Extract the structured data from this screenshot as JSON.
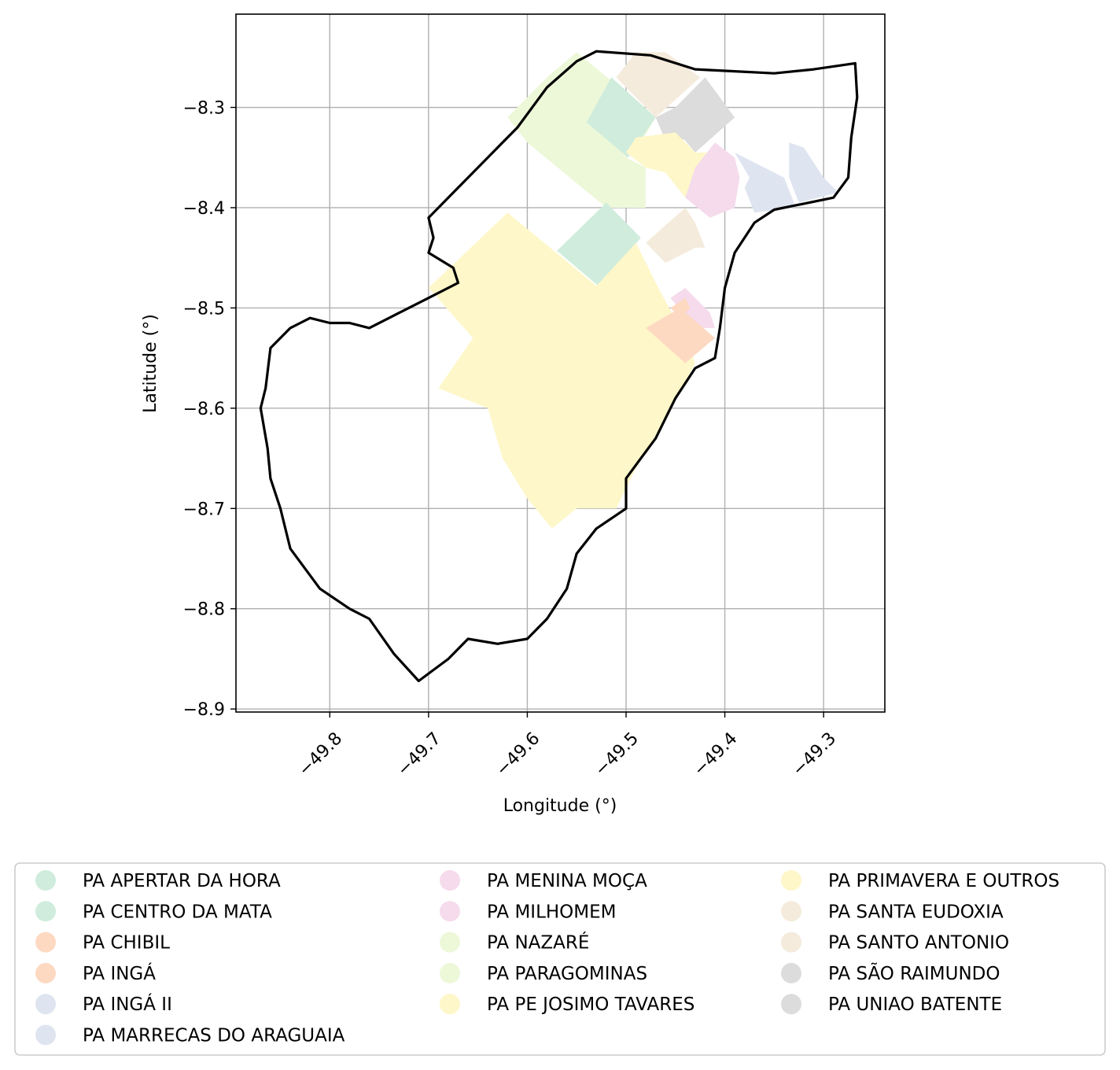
{
  "chart_data": {
    "type": "map",
    "xlabel": "Longitude (°)",
    "ylabel": "Latitude (°)",
    "xlim": [
      -49.895,
      -49.238
    ],
    "ylim": [
      -8.903,
      -8.207
    ],
    "grid": true,
    "legend_placement": "bottom",
    "x_ticks": [
      "−49.8",
      "−49.7",
      "−49.6",
      "−49.5",
      "−49.4",
      "−49.3"
    ],
    "x_tick_values": [
      -49.8,
      -49.7,
      -49.6,
      -49.5,
      -49.4,
      -49.3
    ],
    "y_ticks": [
      "−8.3",
      "−8.4",
      "−8.5",
      "−8.6",
      "−8.7",
      "−8.8",
      "−8.9"
    ],
    "y_tick_values": [
      -8.3,
      -8.4,
      -8.5,
      -8.6,
      -8.7,
      -8.8,
      -8.9
    ],
    "boundary": [
      [
        -49.53,
        -8.244
      ],
      [
        -49.475,
        -8.248
      ],
      [
        -49.43,
        -8.262
      ],
      [
        -49.39,
        -8.264
      ],
      [
        -49.35,
        -8.266
      ],
      [
        -49.31,
        -8.262
      ],
      [
        -49.268,
        -8.256
      ],
      [
        -49.266,
        -8.29
      ],
      [
        -49.272,
        -8.33
      ],
      [
        -49.275,
        -8.37
      ],
      [
        -49.29,
        -8.39
      ],
      [
        -49.32,
        -8.396
      ],
      [
        -49.35,
        -8.402
      ],
      [
        -49.37,
        -8.415
      ],
      [
        -49.39,
        -8.445
      ],
      [
        -49.4,
        -8.48
      ],
      [
        -49.405,
        -8.52
      ],
      [
        -49.41,
        -8.55
      ],
      [
        -49.43,
        -8.56
      ],
      [
        -49.45,
        -8.59
      ],
      [
        -49.46,
        -8.61
      ],
      [
        -49.47,
        -8.63
      ],
      [
        -49.485,
        -8.65
      ],
      [
        -49.5,
        -8.67
      ],
      [
        -49.5,
        -8.7
      ],
      [
        -49.53,
        -8.72
      ],
      [
        -49.55,
        -8.745
      ],
      [
        -49.56,
        -8.78
      ],
      [
        -49.58,
        -8.81
      ],
      [
        -49.6,
        -8.83
      ],
      [
        -49.63,
        -8.835
      ],
      [
        -49.66,
        -8.83
      ],
      [
        -49.68,
        -8.85
      ],
      [
        -49.71,
        -8.872
      ],
      [
        -49.735,
        -8.845
      ],
      [
        -49.76,
        -8.81
      ],
      [
        -49.78,
        -8.8
      ],
      [
        -49.81,
        -8.78
      ],
      [
        -49.84,
        -8.74
      ],
      [
        -49.85,
        -8.7
      ],
      [
        -49.86,
        -8.67
      ],
      [
        -49.863,
        -8.64
      ],
      [
        -49.87,
        -8.6
      ],
      [
        -49.865,
        -8.58
      ],
      [
        -49.86,
        -8.54
      ],
      [
        -49.84,
        -8.52
      ],
      [
        -49.82,
        -8.51
      ],
      [
        -49.8,
        -8.515
      ],
      [
        -49.78,
        -8.515
      ],
      [
        -49.76,
        -8.52
      ],
      [
        -49.74,
        -8.51
      ],
      [
        -49.72,
        -8.5
      ],
      [
        -49.7,
        -8.49
      ],
      [
        -49.67,
        -8.475
      ],
      [
        -49.675,
        -8.46
      ],
      [
        -49.7,
        -8.445
      ],
      [
        -49.695,
        -8.43
      ],
      [
        -49.7,
        -8.41
      ],
      [
        -49.67,
        -8.38
      ],
      [
        -49.64,
        -8.35
      ],
      [
        -49.61,
        -8.32
      ],
      [
        -49.58,
        -8.28
      ],
      [
        -49.55,
        -8.254
      ],
      [
        -49.53,
        -8.244
      ]
    ],
    "parcels": [
      {
        "name": "PA NAZARÉ",
        "color": "#edf8d9",
        "polygon": [
          [
            -49.55,
            -8.245
          ],
          [
            -49.47,
            -8.31
          ],
          [
            -49.485,
            -8.335
          ],
          [
            -49.5,
            -8.35
          ],
          [
            -49.48,
            -8.36
          ],
          [
            -49.48,
            -8.4
          ],
          [
            -49.52,
            -8.4
          ],
          [
            -49.6,
            -8.335
          ],
          [
            -49.62,
            -8.31
          ],
          [
            -49.58,
            -8.27
          ]
        ]
      },
      {
        "name": "PA PARAGOMINAS",
        "color": "#edf8d9",
        "polygon": [
          [
            -49.56,
            -8.255
          ],
          [
            -49.53,
            -8.27
          ],
          [
            -49.56,
            -8.3
          ],
          [
            -49.6,
            -8.33
          ],
          [
            -49.62,
            -8.31
          ],
          [
            -49.59,
            -8.28
          ]
        ]
      },
      {
        "name": "PA APERTAR DA HORA",
        "color": "#d0ecdc",
        "polygon": [
          [
            -49.515,
            -8.27
          ],
          [
            -49.47,
            -8.31
          ],
          [
            -49.498,
            -8.35
          ],
          [
            -49.54,
            -8.315
          ]
        ]
      },
      {
        "name": "PA CENTRO DA MATA",
        "color": "#d0ecdc",
        "polygon": [
          [
            -49.52,
            -8.395
          ],
          [
            -49.485,
            -8.43
          ],
          [
            -49.528,
            -8.478
          ],
          [
            -49.57,
            -8.443
          ]
        ]
      },
      {
        "name": "PA SANTA EUDOXIA",
        "color": "#f4ebdc",
        "polygon": [
          [
            -49.49,
            -8.245
          ],
          [
            -49.46,
            -8.245
          ],
          [
            -49.425,
            -8.27
          ],
          [
            -49.47,
            -8.31
          ],
          [
            -49.51,
            -8.27
          ]
        ]
      },
      {
        "name": "PA SANTO ANTONIO",
        "color": "#f4ebdc",
        "polygon": [
          [
            -49.44,
            -8.4
          ],
          [
            -49.48,
            -8.435
          ],
          [
            -49.46,
            -8.455
          ],
          [
            -49.43,
            -8.44
          ],
          [
            -49.42,
            -8.44
          ],
          [
            -49.43,
            -8.415
          ]
        ]
      },
      {
        "name": "PA SÃO RAIMUNDO",
        "color": "#dcdcdc",
        "polygon": [
          [
            -49.42,
            -8.27
          ],
          [
            -49.46,
            -8.31
          ],
          [
            -49.43,
            -8.345
          ],
          [
            -49.39,
            -8.31
          ]
        ]
      },
      {
        "name": "PA UNIAO BATENTE",
        "color": "#dcdcdc",
        "polygon": [
          [
            -49.45,
            -8.3
          ],
          [
            -49.47,
            -8.31
          ],
          [
            -49.455,
            -8.345
          ],
          [
            -49.44,
            -8.33
          ]
        ]
      },
      {
        "name": "PA PRIMAVERA E OUTROS",
        "color": "#fef7c9",
        "polygon": [
          [
            -49.49,
            -8.33
          ],
          [
            -49.45,
            -8.325
          ],
          [
            -49.43,
            -8.345
          ],
          [
            -49.41,
            -8.345
          ],
          [
            -49.44,
            -8.39
          ],
          [
            -49.46,
            -8.365
          ],
          [
            -49.48,
            -8.36
          ],
          [
            -49.5,
            -8.345
          ]
        ]
      },
      {
        "name": "PA PE JOSIMO TAVARES",
        "color": "#fef7c9",
        "polygon": [
          [
            -49.62,
            -8.405
          ],
          [
            -49.53,
            -8.478
          ],
          [
            -49.49,
            -8.435
          ],
          [
            -49.47,
            -8.475
          ],
          [
            -49.44,
            -8.53
          ],
          [
            -49.43,
            -8.555
          ],
          [
            -49.46,
            -8.61
          ],
          [
            -49.49,
            -8.66
          ],
          [
            -49.51,
            -8.7
          ],
          [
            -49.55,
            -8.7
          ],
          [
            -49.575,
            -8.72
          ],
          [
            -49.6,
            -8.69
          ],
          [
            -49.625,
            -8.65
          ],
          [
            -49.64,
            -8.6
          ],
          [
            -49.69,
            -8.58
          ],
          [
            -49.655,
            -8.53
          ],
          [
            -49.7,
            -8.48
          ]
        ]
      },
      {
        "name": "PA MENINA MOÇA",
        "color": "#f5dbec",
        "polygon": [
          [
            -49.41,
            -8.335
          ],
          [
            -49.43,
            -8.36
          ],
          [
            -49.44,
            -8.39
          ],
          [
            -49.415,
            -8.41
          ],
          [
            -49.39,
            -8.4
          ],
          [
            -49.385,
            -8.37
          ],
          [
            -49.39,
            -8.35
          ]
        ]
      },
      {
        "name": "PA MILHOMEM",
        "color": "#f5dbec",
        "polygon": [
          [
            -49.44,
            -8.48
          ],
          [
            -49.455,
            -8.49
          ],
          [
            -49.43,
            -8.52
          ],
          [
            -49.41,
            -8.52
          ],
          [
            -49.415,
            -8.505
          ],
          [
            -49.43,
            -8.49
          ]
        ]
      },
      {
        "name": "PA CHIBIL",
        "color": "#fdd9c2",
        "polygon": [
          [
            -49.445,
            -8.5
          ],
          [
            -49.48,
            -8.52
          ],
          [
            -49.44,
            -8.555
          ],
          [
            -49.41,
            -8.53
          ]
        ]
      },
      {
        "name": "PA INGÁ",
        "color": "#fdd9c2",
        "polygon": [
          [
            -49.44,
            -8.49
          ],
          [
            -49.455,
            -8.5
          ],
          [
            -49.445,
            -8.51
          ],
          [
            -49.435,
            -8.5
          ]
        ]
      },
      {
        "name": "PA INGÁ II",
        "color": "#dfe5f0",
        "polygon": [
          [
            -49.39,
            -8.345
          ],
          [
            -49.36,
            -8.36
          ],
          [
            -49.34,
            -8.37
          ],
          [
            -49.33,
            -8.395
          ],
          [
            -49.33,
            -8.4
          ],
          [
            -49.37,
            -8.405
          ],
          [
            -49.38,
            -8.38
          ],
          [
            -49.375,
            -8.37
          ]
        ]
      },
      {
        "name": "PA MARRECAS DO ARAGUAIA",
        "color": "#dfe5f0",
        "polygon": [
          [
            -49.335,
            -8.335
          ],
          [
            -49.32,
            -8.34
          ],
          [
            -49.3,
            -8.37
          ],
          [
            -49.285,
            -8.385
          ],
          [
            -49.325,
            -8.395
          ],
          [
            -49.335,
            -8.37
          ]
        ]
      }
    ],
    "legend": [
      {
        "label": "PA APERTAR DA HORA",
        "color": "#d0ecdc"
      },
      {
        "label": "PA CENTRO DA MATA",
        "color": "#d0ecdc"
      },
      {
        "label": "PA CHIBIL",
        "color": "#fdd9c2"
      },
      {
        "label": "PA INGÁ",
        "color": "#fdd9c2"
      },
      {
        "label": "PA INGÁ II",
        "color": "#dfe5f0"
      },
      {
        "label": "PA MARRECAS DO ARAGUAIA",
        "color": "#dfe5f0"
      },
      {
        "label": "PA MENINA MOÇA",
        "color": "#f5dbec"
      },
      {
        "label": "PA MILHOMEM",
        "color": "#f5dbec"
      },
      {
        "label": "PA NAZARÉ",
        "color": "#edf8d9"
      },
      {
        "label": "PA PARAGOMINAS",
        "color": "#edf8d9"
      },
      {
        "label": "PA PE JOSIMO TAVARES",
        "color": "#fef7c9"
      },
      {
        "label": "PA PRIMAVERA E OUTROS",
        "color": "#fef7c9"
      },
      {
        "label": "PA SANTA EUDOXIA",
        "color": "#f4ebdc"
      },
      {
        "label": "PA SANTO ANTONIO",
        "color": "#f4ebdc"
      },
      {
        "label": "PA SÃO RAIMUNDO",
        "color": "#dcdcdc"
      },
      {
        "label": "PA UNIAO BATENTE",
        "color": "#dcdcdc"
      }
    ]
  }
}
